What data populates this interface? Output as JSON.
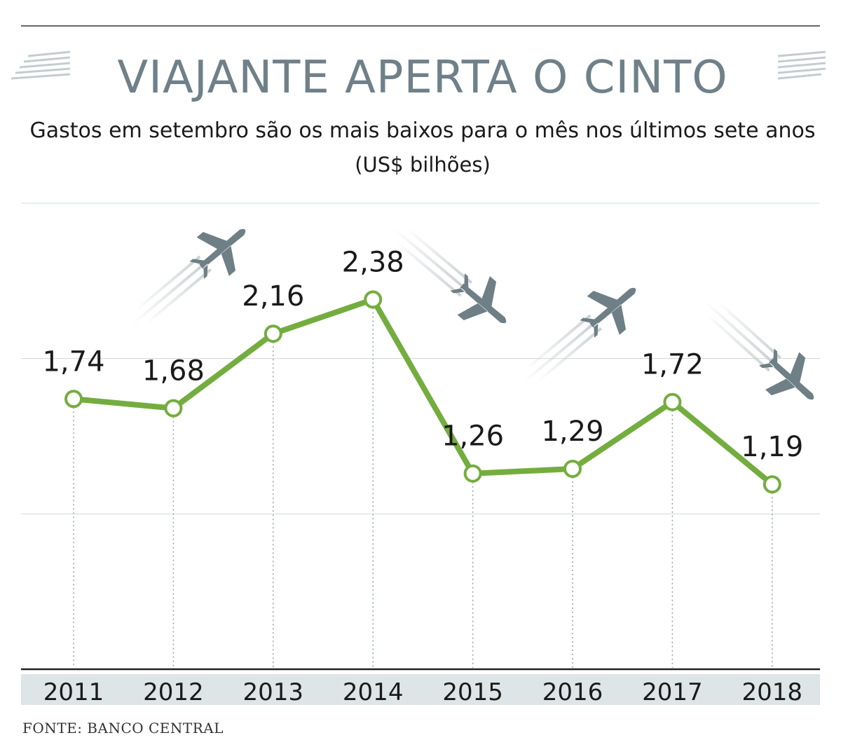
{
  "title": "VIAJANTE APERTA O CINTO",
  "subtitle": "Gastos em setembro são os mais baixos para o mês nos últimos sete anos",
  "unit": "(US$ bilhões)",
  "source": "FONTE: BANCO CENTRAL",
  "colors": {
    "line": "#74ad3f",
    "title": "#6f8088",
    "axis_band": "#dde5e6",
    "plane": "#6f7f86"
  },
  "decorations": [
    "airplane-icon",
    "airplane-icon",
    "airplane-icon",
    "airplane-icon"
  ],
  "chart_data": {
    "type": "line",
    "categories": [
      "2011",
      "2012",
      "2013",
      "2014",
      "2015",
      "2016",
      "2017",
      "2018"
    ],
    "values": [
      1.74,
      1.68,
      2.16,
      2.38,
      1.26,
      1.29,
      1.72,
      1.19
    ],
    "value_labels": [
      "1,74",
      "1,68",
      "2,16",
      "2,38",
      "1,26",
      "1,29",
      "1,72",
      "1,19"
    ],
    "title": "VIAJANTE APERTA O CINTO",
    "ylabel": "(US$ bilhões)",
    "ylim": [
      0,
      3
    ],
    "grid": true,
    "legend": "none"
  }
}
